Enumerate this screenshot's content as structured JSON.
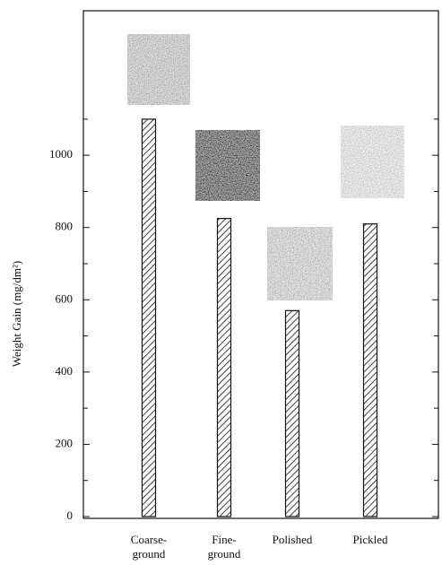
{
  "chart_data": {
    "type": "bar",
    "y_label": "Weight Gain (mg/dm²)",
    "categories": [
      [
        "Coarse-",
        "ground"
      ],
      [
        "Fine-",
        "ground"
      ],
      [
        "Polished"
      ],
      [
        "Pickled"
      ]
    ],
    "values": [
      1100,
      825,
      570,
      810
    ],
    "color": "#111111",
    "ylim": [
      0,
      1400
    ],
    "yticks": [
      0,
      200,
      400,
      600,
      800,
      1000
    ],
    "yticks_minor": [
      100,
      300,
      500,
      700,
      900,
      1100
    ]
  }
}
